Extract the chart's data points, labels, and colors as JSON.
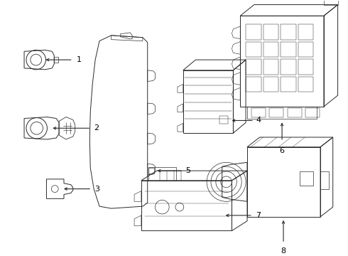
{
  "background_color": "#ffffff",
  "line_color": "#2a2a2a",
  "line_width": 0.7,
  "label_fontsize": 8,
  "label_color": "#000000",
  "figsize": [
    4.9,
    3.6
  ],
  "dpi": 100
}
